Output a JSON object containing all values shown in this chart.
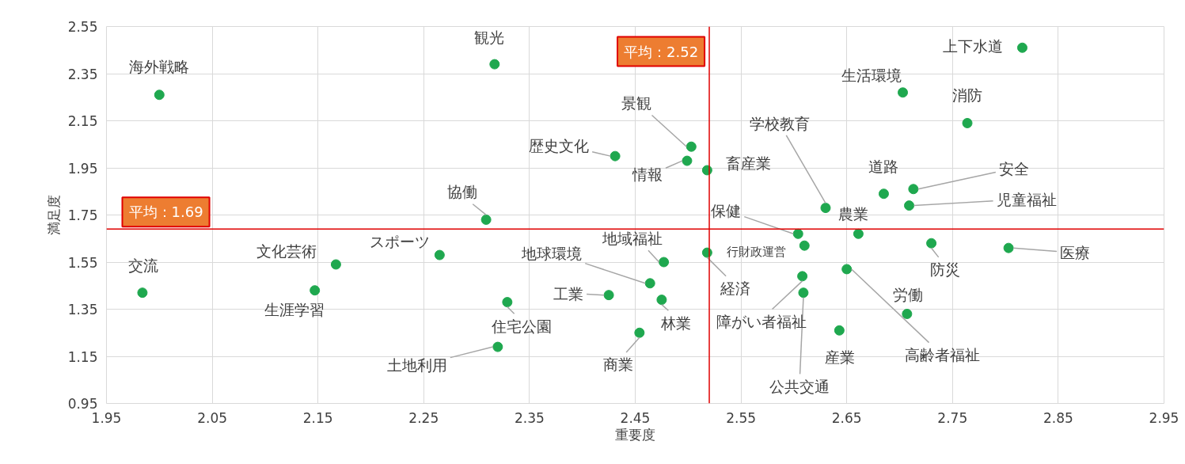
{
  "chart_data": {
    "type": "scatter",
    "xlabel": "重要度",
    "ylabel": "満足度",
    "marker": "circle",
    "color": "#1fa84f",
    "grid": true,
    "xlim": [
      1.95,
      2.95
    ],
    "ylim": [
      0.95,
      2.55
    ],
    "xticks": [
      1.95,
      2.05,
      2.15,
      2.25,
      2.35,
      2.45,
      2.55,
      2.65,
      2.75,
      2.85,
      2.95
    ],
    "yticks": [
      0.95,
      1.15,
      1.35,
      1.55,
      1.75,
      1.95,
      2.15,
      2.35,
      2.55
    ],
    "x": [
      2.0,
      2.317,
      2.816,
      2.703,
      2.764,
      2.503,
      2.431,
      2.499,
      2.518,
      2.685,
      2.713,
      2.709,
      2.63,
      2.309,
      2.604,
      2.661,
      2.73,
      2.803,
      2.61,
      2.167,
      2.265,
      2.477,
      2.518,
      2.608,
      2.65,
      2.464,
      1.984,
      2.147,
      2.425,
      2.609,
      2.329,
      2.475,
      2.707,
      2.643,
      2.454,
      2.32
    ],
    "values": [
      2.26,
      2.39,
      2.46,
      2.27,
      2.14,
      2.04,
      2.0,
      1.98,
      1.94,
      1.84,
      1.86,
      1.79,
      1.78,
      1.73,
      1.67,
      1.67,
      1.63,
      1.61,
      1.62,
      1.54,
      1.58,
      1.55,
      1.59,
      1.49,
      1.52,
      1.46,
      1.42,
      1.43,
      1.41,
      1.42,
      1.38,
      1.39,
      1.33,
      1.26,
      1.25,
      1.19
    ],
    "annotations": [
      {
        "text": "海外戦略",
        "x": 2.0,
        "y": 2.26
      },
      {
        "text": "観光",
        "x": 2.317,
        "y": 2.39
      },
      {
        "text": "上下水道",
        "x": 2.816,
        "y": 2.46
      },
      {
        "text": "生活環境",
        "x": 2.703,
        "y": 2.27
      },
      {
        "text": "消防",
        "x": 2.764,
        "y": 2.14
      },
      {
        "text": "景観",
        "x": 2.503,
        "y": 2.04
      },
      {
        "text": "歴史文化",
        "x": 2.431,
        "y": 2.0
      },
      {
        "text": "情報",
        "x": 2.499,
        "y": 1.98
      },
      {
        "text": "畜産業",
        "x": 2.518,
        "y": 1.94
      },
      {
        "text": "道路",
        "x": 2.685,
        "y": 1.84
      },
      {
        "text": "安全",
        "x": 2.713,
        "y": 1.86
      },
      {
        "text": "児童福祉",
        "x": 2.709,
        "y": 1.79
      },
      {
        "text": "学校教育",
        "x": 2.63,
        "y": 1.78
      },
      {
        "text": "協働",
        "x": 2.309,
        "y": 1.73
      },
      {
        "text": "保健",
        "x": 2.604,
        "y": 1.67
      },
      {
        "text": "農業",
        "x": 2.661,
        "y": 1.67
      },
      {
        "text": "防災",
        "x": 2.73,
        "y": 1.63
      },
      {
        "text": "医療",
        "x": 2.803,
        "y": 1.61
      },
      {
        "text": "行財政運営",
        "x": 2.61,
        "y": 1.62
      },
      {
        "text": "文化芸術",
        "x": 2.167,
        "y": 1.54
      },
      {
        "text": "スポーツ",
        "x": 2.265,
        "y": 1.58
      },
      {
        "text": "地域福祉",
        "x": 2.477,
        "y": 1.55
      },
      {
        "text": "経済",
        "x": 2.518,
        "y": 1.59
      },
      {
        "text": "障がい者福祉",
        "x": 2.608,
        "y": 1.49
      },
      {
        "text": "高齢者福祉",
        "x": 2.65,
        "y": 1.52
      },
      {
        "text": "地球環境",
        "x": 2.464,
        "y": 1.46
      },
      {
        "text": "交流",
        "x": 1.984,
        "y": 1.42
      },
      {
        "text": "生涯学習",
        "x": 2.147,
        "y": 1.43
      },
      {
        "text": "工業",
        "x": 2.425,
        "y": 1.41
      },
      {
        "text": "公共交通",
        "x": 2.609,
        "y": 1.42
      },
      {
        "text": "住宅公園",
        "x": 2.329,
        "y": 1.38
      },
      {
        "text": "林業",
        "x": 2.475,
        "y": 1.39
      },
      {
        "text": "労働",
        "x": 2.707,
        "y": 1.33
      },
      {
        "text": "産業",
        "x": 2.643,
        "y": 1.26
      },
      {
        "text": "商業",
        "x": 2.454,
        "y": 1.25
      },
      {
        "text": "土地利用",
        "x": 2.32,
        "y": 1.19
      }
    ],
    "ref_lines": [
      {
        "axis": "x",
        "value": 2.52,
        "label": "平均：2.52",
        "color": "#e00000"
      },
      {
        "axis": "y",
        "value": 1.69,
        "label": "平均：1.69",
        "color": "#e00000"
      }
    ]
  }
}
